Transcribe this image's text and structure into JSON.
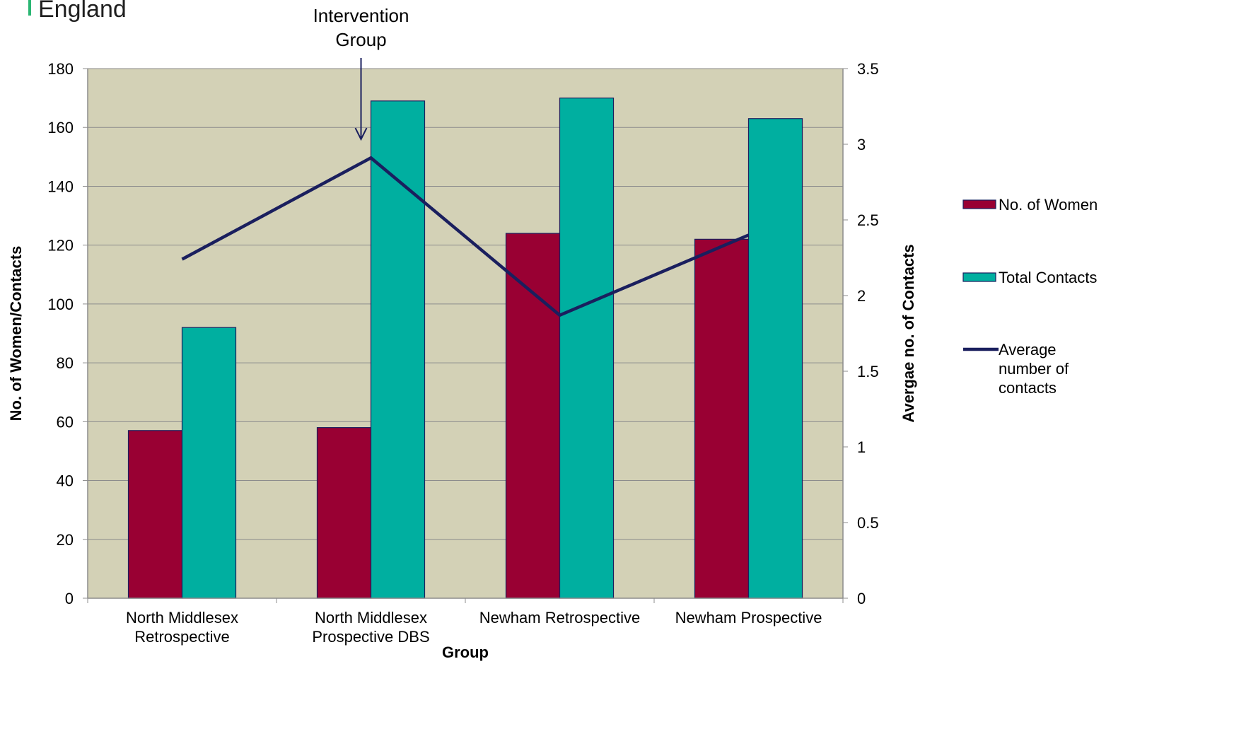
{
  "header_fragment": "England",
  "annotation": {
    "line1": "Intervention",
    "line2": "Group"
  },
  "chart_data": {
    "type": "bar",
    "categories": [
      [
        "North Middlesex",
        "Retrospective"
      ],
      [
        "North Middlesex",
        "Prospective DBS"
      ],
      [
        "Newham Retrospective"
      ],
      [
        "Newham Prospective"
      ]
    ],
    "series": [
      {
        "name": "No. of Women",
        "type": "bar",
        "axis": "left",
        "color": "#990033",
        "values": [
          57,
          58,
          124,
          122
        ]
      },
      {
        "name": "Total Contacts",
        "type": "bar",
        "axis": "left",
        "color": "#00AFA0",
        "values": [
          92,
          169,
          170,
          163
        ]
      },
      {
        "name": "Average number of contacts",
        "legend_lines": [
          "Average",
          "number of",
          "contacts"
        ],
        "type": "line",
        "axis": "right",
        "color": "#1A1F5E",
        "values": [
          2.24,
          2.91,
          1.87,
          2.4
        ]
      }
    ],
    "xlabel": "Group",
    "ylabel": "No. of Women/Contacts",
    "y2label": "Avergae no. of Contacts",
    "ylim": [
      0,
      180
    ],
    "yticks": [
      0,
      20,
      40,
      60,
      80,
      100,
      120,
      140,
      160,
      180
    ],
    "y2lim": [
      0,
      3.5
    ],
    "y2ticks": [
      "0",
      "0.5",
      "1",
      "1.5",
      "2",
      "2.5",
      "3",
      "3.5"
    ],
    "plot_background": "#D3D1B6",
    "grid": true,
    "legend_position": "right"
  }
}
